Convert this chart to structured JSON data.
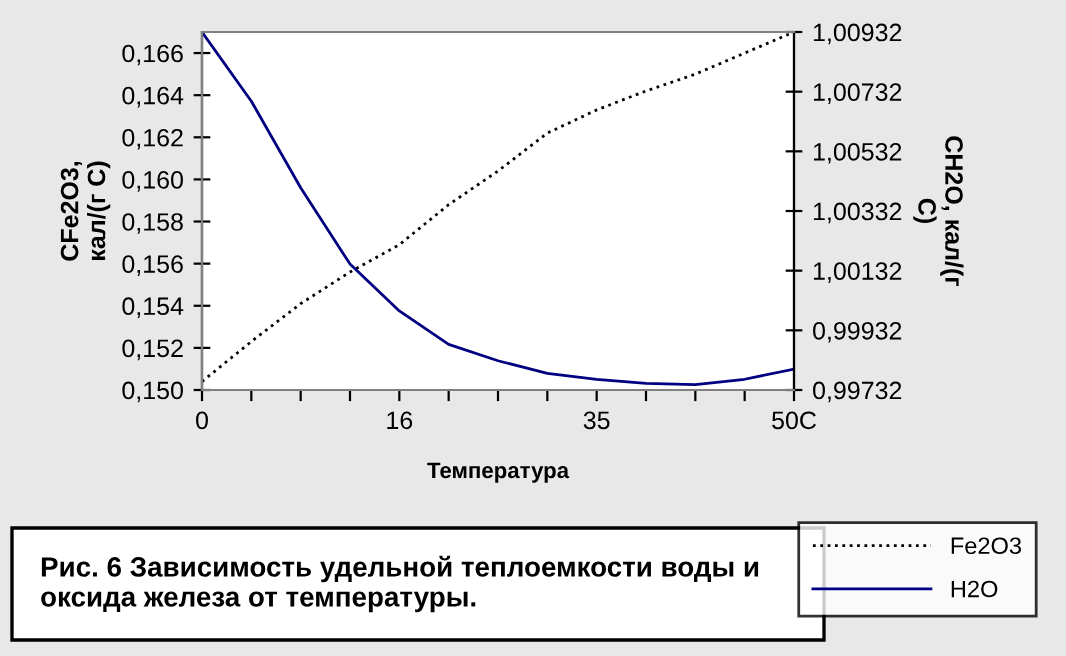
{
  "chart_data": {
    "type": "line",
    "title": "Рис. 6 Зависимость удельной теплоемкости воды и оксида железа от температуры.",
    "xlabel": "Температура",
    "ylabel": "CFe2O3,\nкал/(г С)",
    "y2label": "CH2O, кал/(г\nС)",
    "categories": [
      "0",
      null,
      null,
      null,
      "16",
      null,
      null,
      null,
      "35",
      null,
      null,
      null,
      "50C"
    ],
    "series": [
      {
        "name": "Fe2O3",
        "color": "#000000",
        "line_style": "dotted",
        "values": [
          0.1504,
          0.1523,
          0.1541,
          0.1556,
          0.1569,
          0.1588,
          0.1604,
          0.1622,
          0.1633,
          0.1642,
          0.165,
          0.166,
          0.167
        ]
      },
      {
        "name": "H2O",
        "color": "#000080",
        "line_style": "solid",
        "axis": "y2",
        "values": [
          1.00932,
          1.007,
          1.0041,
          1.00154,
          0.99997,
          0.99885,
          0.9983,
          0.99788,
          0.99768,
          0.99754,
          0.9975,
          0.99768,
          0.99802
        ]
      }
    ],
    "ylim": [
      0.15,
      0.167
    ],
    "yticks": [
      {
        "value": 0.15,
        "label": "0,150"
      },
      {
        "value": 0.152,
        "label": "0,152"
      },
      {
        "value": 0.154,
        "label": "0,154"
      },
      {
        "value": 0.156,
        "label": "0,156"
      },
      {
        "value": 0.158,
        "label": "0,158"
      },
      {
        "value": 0.16,
        "label": "0,160"
      },
      {
        "value": 0.162,
        "label": "0,162"
      },
      {
        "value": 0.164,
        "label": "0,164"
      },
      {
        "value": 0.166,
        "label": "0,166"
      }
    ],
    "y2lim": [
      0.99732,
      1.00932
    ],
    "y2ticks": [
      {
        "value": 0.99732,
        "label": "0,99732"
      },
      {
        "value": 0.99932,
        "label": "0,99932"
      },
      {
        "value": 1.00132,
        "label": "1,00132"
      },
      {
        "value": 1.00332,
        "label": "1,00332"
      },
      {
        "value": 1.00532,
        "label": "1,00532"
      },
      {
        "value": 1.00732,
        "label": "1,00732"
      },
      {
        "value": 1.00932,
        "label": "1,00932"
      }
    ],
    "grid": false,
    "legend": "bottom right",
    "marker": "none"
  }
}
